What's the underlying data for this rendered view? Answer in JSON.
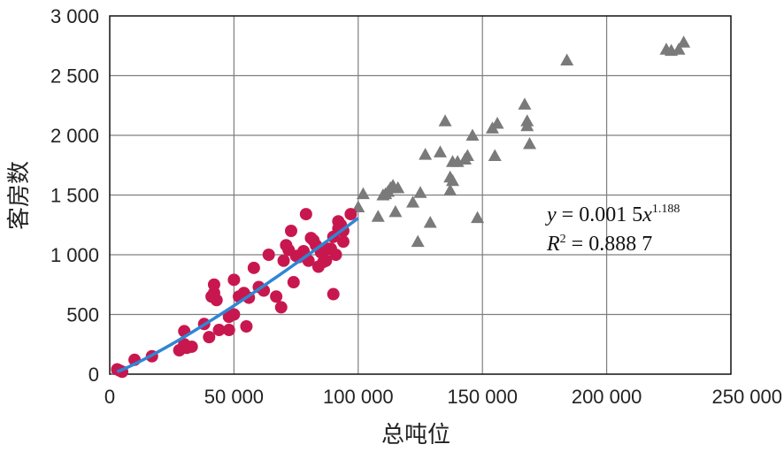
{
  "chart_data": {
    "type": "scatter",
    "xlabel": "总吨位",
    "ylabel": "客房数",
    "xlim": [
      0,
      250000
    ],
    "ylim": [
      0,
      3000
    ],
    "xticks": [
      0,
      50000,
      100000,
      150000,
      200000,
      250000
    ],
    "yticks": [
      0,
      500,
      1000,
      1500,
      2000,
      2500,
      3000
    ],
    "xtick_labels": [
      "0",
      "50 000",
      "100 000",
      "150 000",
      "200 000",
      "250 000"
    ],
    "ytick_labels": [
      "0",
      "500",
      "1 000",
      "1 500",
      "2 000",
      "2 500",
      "3 000"
    ],
    "grid": true,
    "colors": {
      "circles": "#c8174f",
      "triangles": "#7a7a7a",
      "fit_line": "#2f86d4",
      "grid": "#7f7f7f"
    },
    "annotation": {
      "equation": {
        "lhs": "y",
        "mid": " = 0.001 5",
        "var": "x",
        "exp": "1.188"
      },
      "r2": {
        "lhs": "R",
        "sup": "2",
        "rhs": " = 0.888 7"
      }
    },
    "series": [
      {
        "marker": "circle",
        "color": "#c8174f",
        "points": [
          [
            3000,
            40
          ],
          [
            4000,
            30
          ],
          [
            5000,
            20
          ],
          [
            10000,
            120
          ],
          [
            17000,
            150
          ],
          [
            28000,
            200
          ],
          [
            30000,
            250
          ],
          [
            30000,
            360
          ],
          [
            31000,
            220
          ],
          [
            33000,
            230
          ],
          [
            38000,
            420
          ],
          [
            40000,
            310
          ],
          [
            41000,
            650
          ],
          [
            42000,
            680
          ],
          [
            42000,
            750
          ],
          [
            43000,
            620
          ],
          [
            44000,
            370
          ],
          [
            48000,
            480
          ],
          [
            48000,
            370
          ],
          [
            50000,
            500
          ],
          [
            50000,
            790
          ],
          [
            52000,
            650
          ],
          [
            54000,
            680
          ],
          [
            55000,
            400
          ],
          [
            56000,
            640
          ],
          [
            58000,
            890
          ],
          [
            60000,
            730
          ],
          [
            62000,
            700
          ],
          [
            64000,
            1000
          ],
          [
            67000,
            650
          ],
          [
            69000,
            560
          ],
          [
            70000,
            950
          ],
          [
            71000,
            1080
          ],
          [
            72000,
            1040
          ],
          [
            73000,
            1200
          ],
          [
            74000,
            770
          ],
          [
            75000,
            990
          ],
          [
            76000,
            980
          ],
          [
            77000,
            1000
          ],
          [
            78000,
            1030
          ],
          [
            79000,
            1340
          ],
          [
            80000,
            950
          ],
          [
            81000,
            1140
          ],
          [
            82000,
            1120
          ],
          [
            83000,
            1080
          ],
          [
            84000,
            900
          ],
          [
            85000,
            1020
          ],
          [
            86000,
            940
          ],
          [
            87000,
            950
          ],
          [
            88000,
            1050
          ],
          [
            89000,
            1050
          ],
          [
            90000,
            1150
          ],
          [
            90000,
            670
          ],
          [
            91000,
            1000
          ],
          [
            92000,
            1280
          ],
          [
            92000,
            1220
          ],
          [
            93000,
            1250
          ],
          [
            94000,
            1200
          ],
          [
            94000,
            1110
          ],
          [
            97000,
            1340
          ]
        ]
      },
      {
        "marker": "triangle",
        "color": "#7a7a7a",
        "points": [
          [
            3000,
            40
          ],
          [
            100000,
            1400
          ],
          [
            102000,
            1510
          ],
          [
            108000,
            1320
          ],
          [
            110000,
            1500
          ],
          [
            111000,
            1510
          ],
          [
            112000,
            1530
          ],
          [
            113000,
            1560
          ],
          [
            114000,
            1580
          ],
          [
            115000,
            1360
          ],
          [
            116000,
            1560
          ],
          [
            122000,
            1440
          ],
          [
            124000,
            1110
          ],
          [
            125000,
            1520
          ],
          [
            127000,
            1840
          ],
          [
            129000,
            1270
          ],
          [
            133000,
            1860
          ],
          [
            135000,
            2120
          ],
          [
            137000,
            1540
          ],
          [
            137000,
            1650
          ],
          [
            138000,
            1620
          ],
          [
            138000,
            1780
          ],
          [
            140000,
            1780
          ],
          [
            143000,
            1800
          ],
          [
            144000,
            1830
          ],
          [
            146000,
            2000
          ],
          [
            148000,
            1310
          ],
          [
            154000,
            2060
          ],
          [
            155000,
            1830
          ],
          [
            156000,
            2100
          ],
          [
            167000,
            2260
          ],
          [
            168000,
            2080
          ],
          [
            168000,
            2120
          ],
          [
            169000,
            1930
          ],
          [
            184000,
            2630
          ],
          [
            224000,
            2720
          ],
          [
            226000,
            2710
          ],
          [
            229000,
            2720
          ],
          [
            231000,
            2780
          ]
        ]
      }
    ],
    "fit": {
      "formula": "y = 0.0015 x^1.188",
      "coef": 0.0015,
      "exponent": 1.188,
      "x_range": [
        3000,
        100000
      ]
    }
  }
}
